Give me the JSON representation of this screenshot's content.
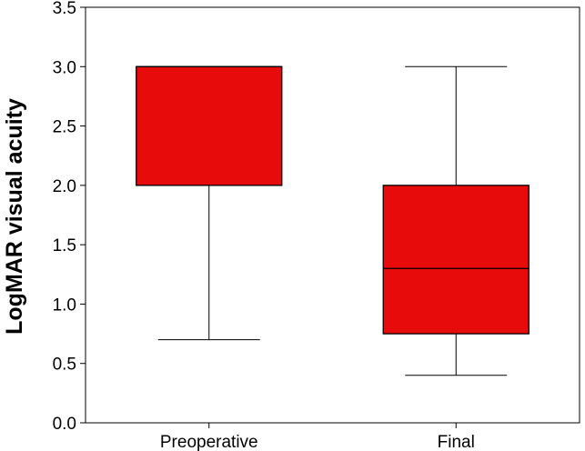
{
  "chart_data": {
    "type": "box",
    "title": "",
    "xlabel": "",
    "ylabel": "LogMAR visual acuity",
    "ylim": [
      0,
      3.5
    ],
    "yticks": [
      "0.0",
      "0.5",
      "1.0",
      "1.5",
      "2.0",
      "2.5",
      "3.0",
      "3.5"
    ],
    "ytick_values": [
      0,
      0.5,
      1,
      1.5,
      2,
      2.5,
      3,
      3.5
    ],
    "grid": false,
    "box_color": "#e80b0b",
    "categories": [
      "Preoperative",
      "Final"
    ],
    "boxes": [
      {
        "label": "Preoperative",
        "whisker_low": 0.7,
        "q1": 2.0,
        "median": 3.0,
        "q3": 3.0,
        "whisker_high": 3.0
      },
      {
        "label": "Final",
        "whisker_low": 0.4,
        "q1": 0.75,
        "median": 1.3,
        "q3": 2.0,
        "whisker_high": 3.0
      }
    ]
  }
}
